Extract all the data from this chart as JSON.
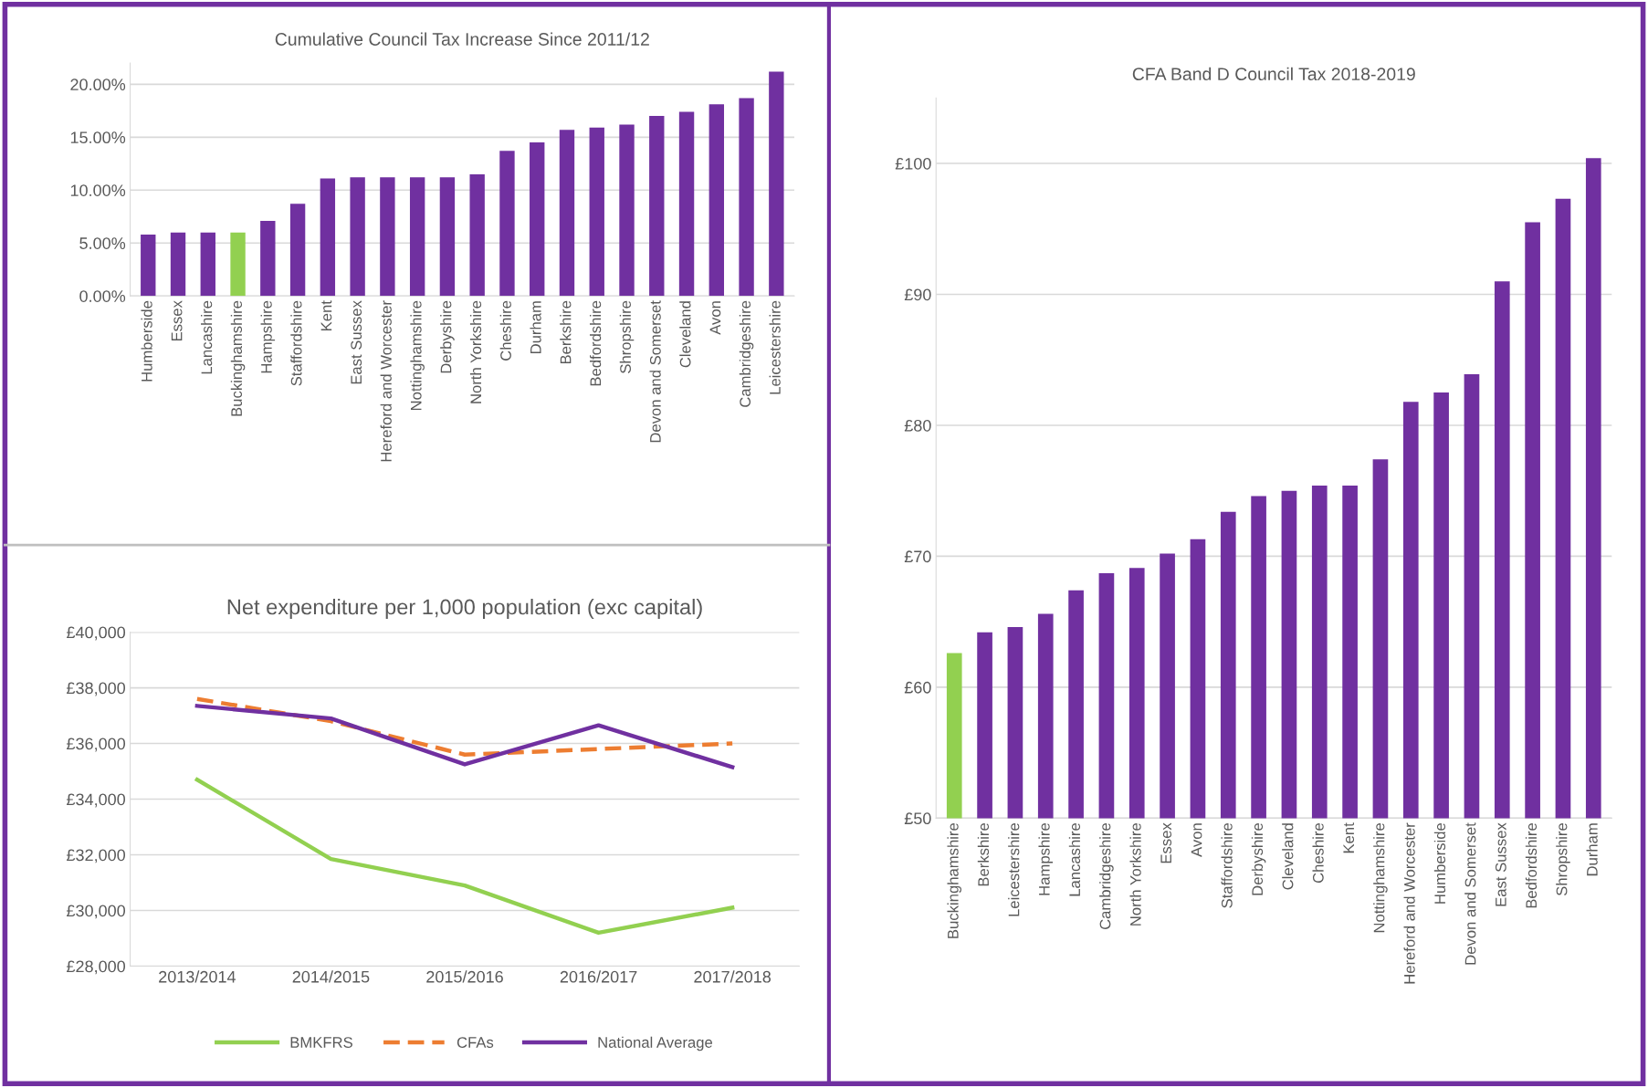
{
  "chart_data": [
    {
      "type": "bar",
      "title": "Cumulative Council Tax Increase Since 2011/12",
      "categories": [
        "Humberside",
        "Essex",
        "Lancashire",
        "Buckinghamshire",
        "Hampshire",
        "Staffordshire",
        "Kent",
        "East Sussex",
        "Hereford and Worcester",
        "Nottinghamshire",
        "Derbyshire",
        "North Yorkshire",
        "Cheshire",
        "Durham",
        "Berkshire",
        "Bedfordshire",
        "Shropshire",
        "Devon and Somerset",
        "Cleveland",
        "Avon",
        "Cambridgeshire",
        "Leicestershire"
      ],
      "values": [
        5.8,
        6.0,
        6.0,
        6.0,
        7.1,
        8.7,
        11.1,
        11.2,
        11.2,
        11.2,
        11.2,
        11.5,
        13.7,
        14.5,
        15.7,
        15.9,
        16.2,
        17.0,
        17.4,
        18.1,
        18.7,
        21.2
      ],
      "colors": [
        "#7030a0",
        "#7030a0",
        "#7030a0",
        "#92d050",
        "#7030a0",
        "#7030a0",
        "#7030a0",
        "#7030a0",
        "#7030a0",
        "#7030a0",
        "#7030a0",
        "#7030a0",
        "#7030a0",
        "#7030a0",
        "#7030a0",
        "#7030a0",
        "#7030a0",
        "#7030a0",
        "#7030a0",
        "#7030a0",
        "#7030a0",
        "#7030a0"
      ],
      "ylim": [
        0,
        22
      ],
      "yticks": [
        {
          "value": 0,
          "label": "0.00%"
        },
        {
          "value": 5,
          "label": "5.00%"
        },
        {
          "value": 10,
          "label": "10.00%"
        },
        {
          "value": 15,
          "label": "15.00%"
        },
        {
          "value": 20,
          "label": "20.00%"
        }
      ],
      "grid": "y"
    },
    {
      "type": "bar",
      "title": "CFA Band D Council Tax 2018-2019",
      "categories": [
        "Buckinghamshire",
        "Berkshire",
        "Leicestershire",
        "Hampshire",
        "Lancashire",
        "Cambridgeshire",
        "North Yorkshire",
        "Essex",
        "Avon",
        "Staffordshire",
        "Derbyshire",
        "Cleveland",
        "Cheshire",
        "Kent",
        "Nottinghamshire",
        "Hereford and Worcester",
        "Humberside",
        "Devon and Somerset",
        "East Sussex",
        "Bedfordshire",
        "Shropshire",
        "Durham"
      ],
      "values": [
        62.6,
        64.2,
        64.6,
        65.6,
        67.4,
        68.7,
        69.1,
        70.2,
        71.3,
        73.4,
        74.6,
        75.0,
        75.4,
        75.4,
        77.4,
        81.8,
        82.5,
        83.9,
        91.0,
        95.5,
        97.3,
        100.4
      ],
      "colors": [
        "#92d050",
        "#7030a0",
        "#7030a0",
        "#7030a0",
        "#7030a0",
        "#7030a0",
        "#7030a0",
        "#7030a0",
        "#7030a0",
        "#7030a0",
        "#7030a0",
        "#7030a0",
        "#7030a0",
        "#7030a0",
        "#7030a0",
        "#7030a0",
        "#7030a0",
        "#7030a0",
        "#7030a0",
        "#7030a0",
        "#7030a0",
        "#7030a0"
      ],
      "ylim": [
        50,
        105
      ],
      "yticks": [
        {
          "value": 50,
          "label": "£50"
        },
        {
          "value": 60,
          "label": "£60"
        },
        {
          "value": 70,
          "label": "£70"
        },
        {
          "value": 80,
          "label": "£80"
        },
        {
          "value": 90,
          "label": "£90"
        },
        {
          "value": 100,
          "label": "£100"
        }
      ],
      "grid": "y"
    },
    {
      "type": "line",
      "title": "Net expenditure per 1,000 population (exc capital)",
      "categories": [
        "2013/2014",
        "2014/2015",
        "2015/2016",
        "2016/2017",
        "2017/2018"
      ],
      "series": [
        {
          "name": "BMKFRS",
          "color": "#92d050",
          "line_style": "solid",
          "values": [
            34700,
            31850,
            30900,
            29200,
            30100
          ]
        },
        {
          "name": "CFAs",
          "color": "#ed7d31",
          "line_style": "dashed",
          "values": [
            37600,
            36800,
            35600,
            35800,
            36000
          ]
        },
        {
          "name": "National Average",
          "color": "#7030a0",
          "line_style": "solid",
          "values": [
            37350,
            36900,
            35250,
            36650,
            35150
          ]
        }
      ],
      "ylim": [
        28000,
        40000
      ],
      "yticks": [
        {
          "value": 28000,
          "label": "£28,000"
        },
        {
          "value": 30000,
          "label": "£30,000"
        },
        {
          "value": 32000,
          "label": "£32,000"
        },
        {
          "value": 34000,
          "label": "£34,000"
        },
        {
          "value": 36000,
          "label": "£36,000"
        },
        {
          "value": 38000,
          "label": "£38,000"
        },
        {
          "value": 40000,
          "label": "£40,000"
        }
      ],
      "grid": "y",
      "legend": "bottom",
      "marker": "none"
    }
  ]
}
